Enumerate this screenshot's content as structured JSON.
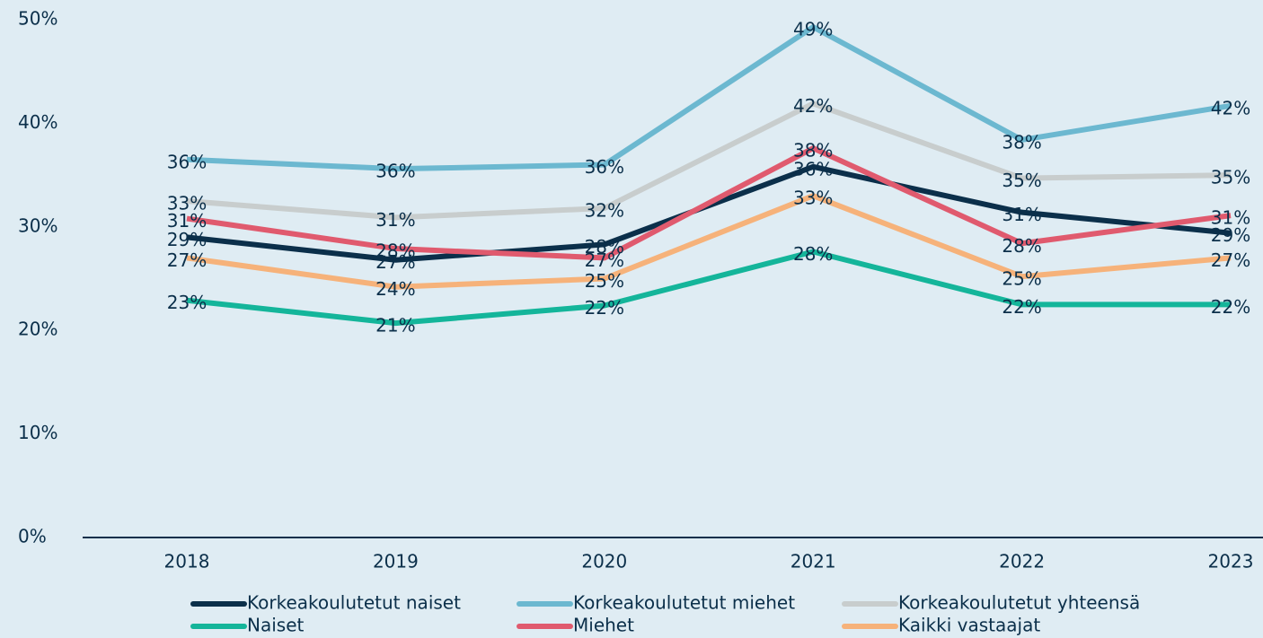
{
  "chart_data": {
    "type": "line",
    "categories": [
      "2018",
      "2019",
      "2020",
      "2021",
      "2022",
      "2023"
    ],
    "ylim": [
      0,
      50
    ],
    "yticks": [
      {
        "value": 0,
        "label": "0%"
      },
      {
        "value": 10,
        "label": "10%"
      },
      {
        "value": 20,
        "label": "20%"
      },
      {
        "value": 30,
        "label": "30%"
      },
      {
        "value": 40,
        "label": "40%"
      },
      {
        "value": 50,
        "label": "50%"
      }
    ],
    "legend": "bottom",
    "series": [
      {
        "name": "Korkeakoulutetut naiset",
        "color": "#0b2f4a",
        "values": [
          29.0,
          26.8,
          28.3,
          35.8,
          31.4,
          29.4
        ],
        "value_labels": [
          "29%",
          "27%",
          "28%",
          "36%",
          "31%",
          "29%"
        ]
      },
      {
        "name": "Korkeakoulutetut miehet",
        "color": "#6cb8d0",
        "values": [
          36.5,
          35.6,
          36.0,
          49.3,
          38.4,
          41.7
        ],
        "value_labels": [
          "36%",
          "36%",
          "36%",
          "49%",
          "38%",
          "42%"
        ]
      },
      {
        "name": "Korkeakoulutetut yhteensä",
        "color": "#c8cdcd",
        "values": [
          32.5,
          30.9,
          31.8,
          41.9,
          34.7,
          35.0
        ],
        "value_labels": [
          "33%",
          "31%",
          "32%",
          "42%",
          "35%",
          "35%"
        ]
      },
      {
        "name": "Naiset",
        "color": "#14b59a",
        "values": [
          22.9,
          20.7,
          22.4,
          27.6,
          22.5,
          22.5
        ],
        "value_labels": [
          "23%",
          "21%",
          "22%",
          "28%",
          "22%",
          "22%"
        ]
      },
      {
        "name": "Miehet",
        "color": "#e05a6e",
        "values": [
          30.8,
          27.9,
          27.0,
          37.6,
          28.4,
          31.1
        ],
        "value_labels": [
          "31%",
          "28%",
          "27%",
          "38%",
          "28%",
          "31%"
        ]
      },
      {
        "name": "Kaikki vastaajat",
        "color": "#f6b27a",
        "values": [
          27.0,
          24.2,
          25.0,
          33.0,
          25.2,
          27.0
        ],
        "value_labels": [
          "27%",
          "24%",
          "25%",
          "33%",
          "25%",
          "27%"
        ]
      }
    ]
  }
}
